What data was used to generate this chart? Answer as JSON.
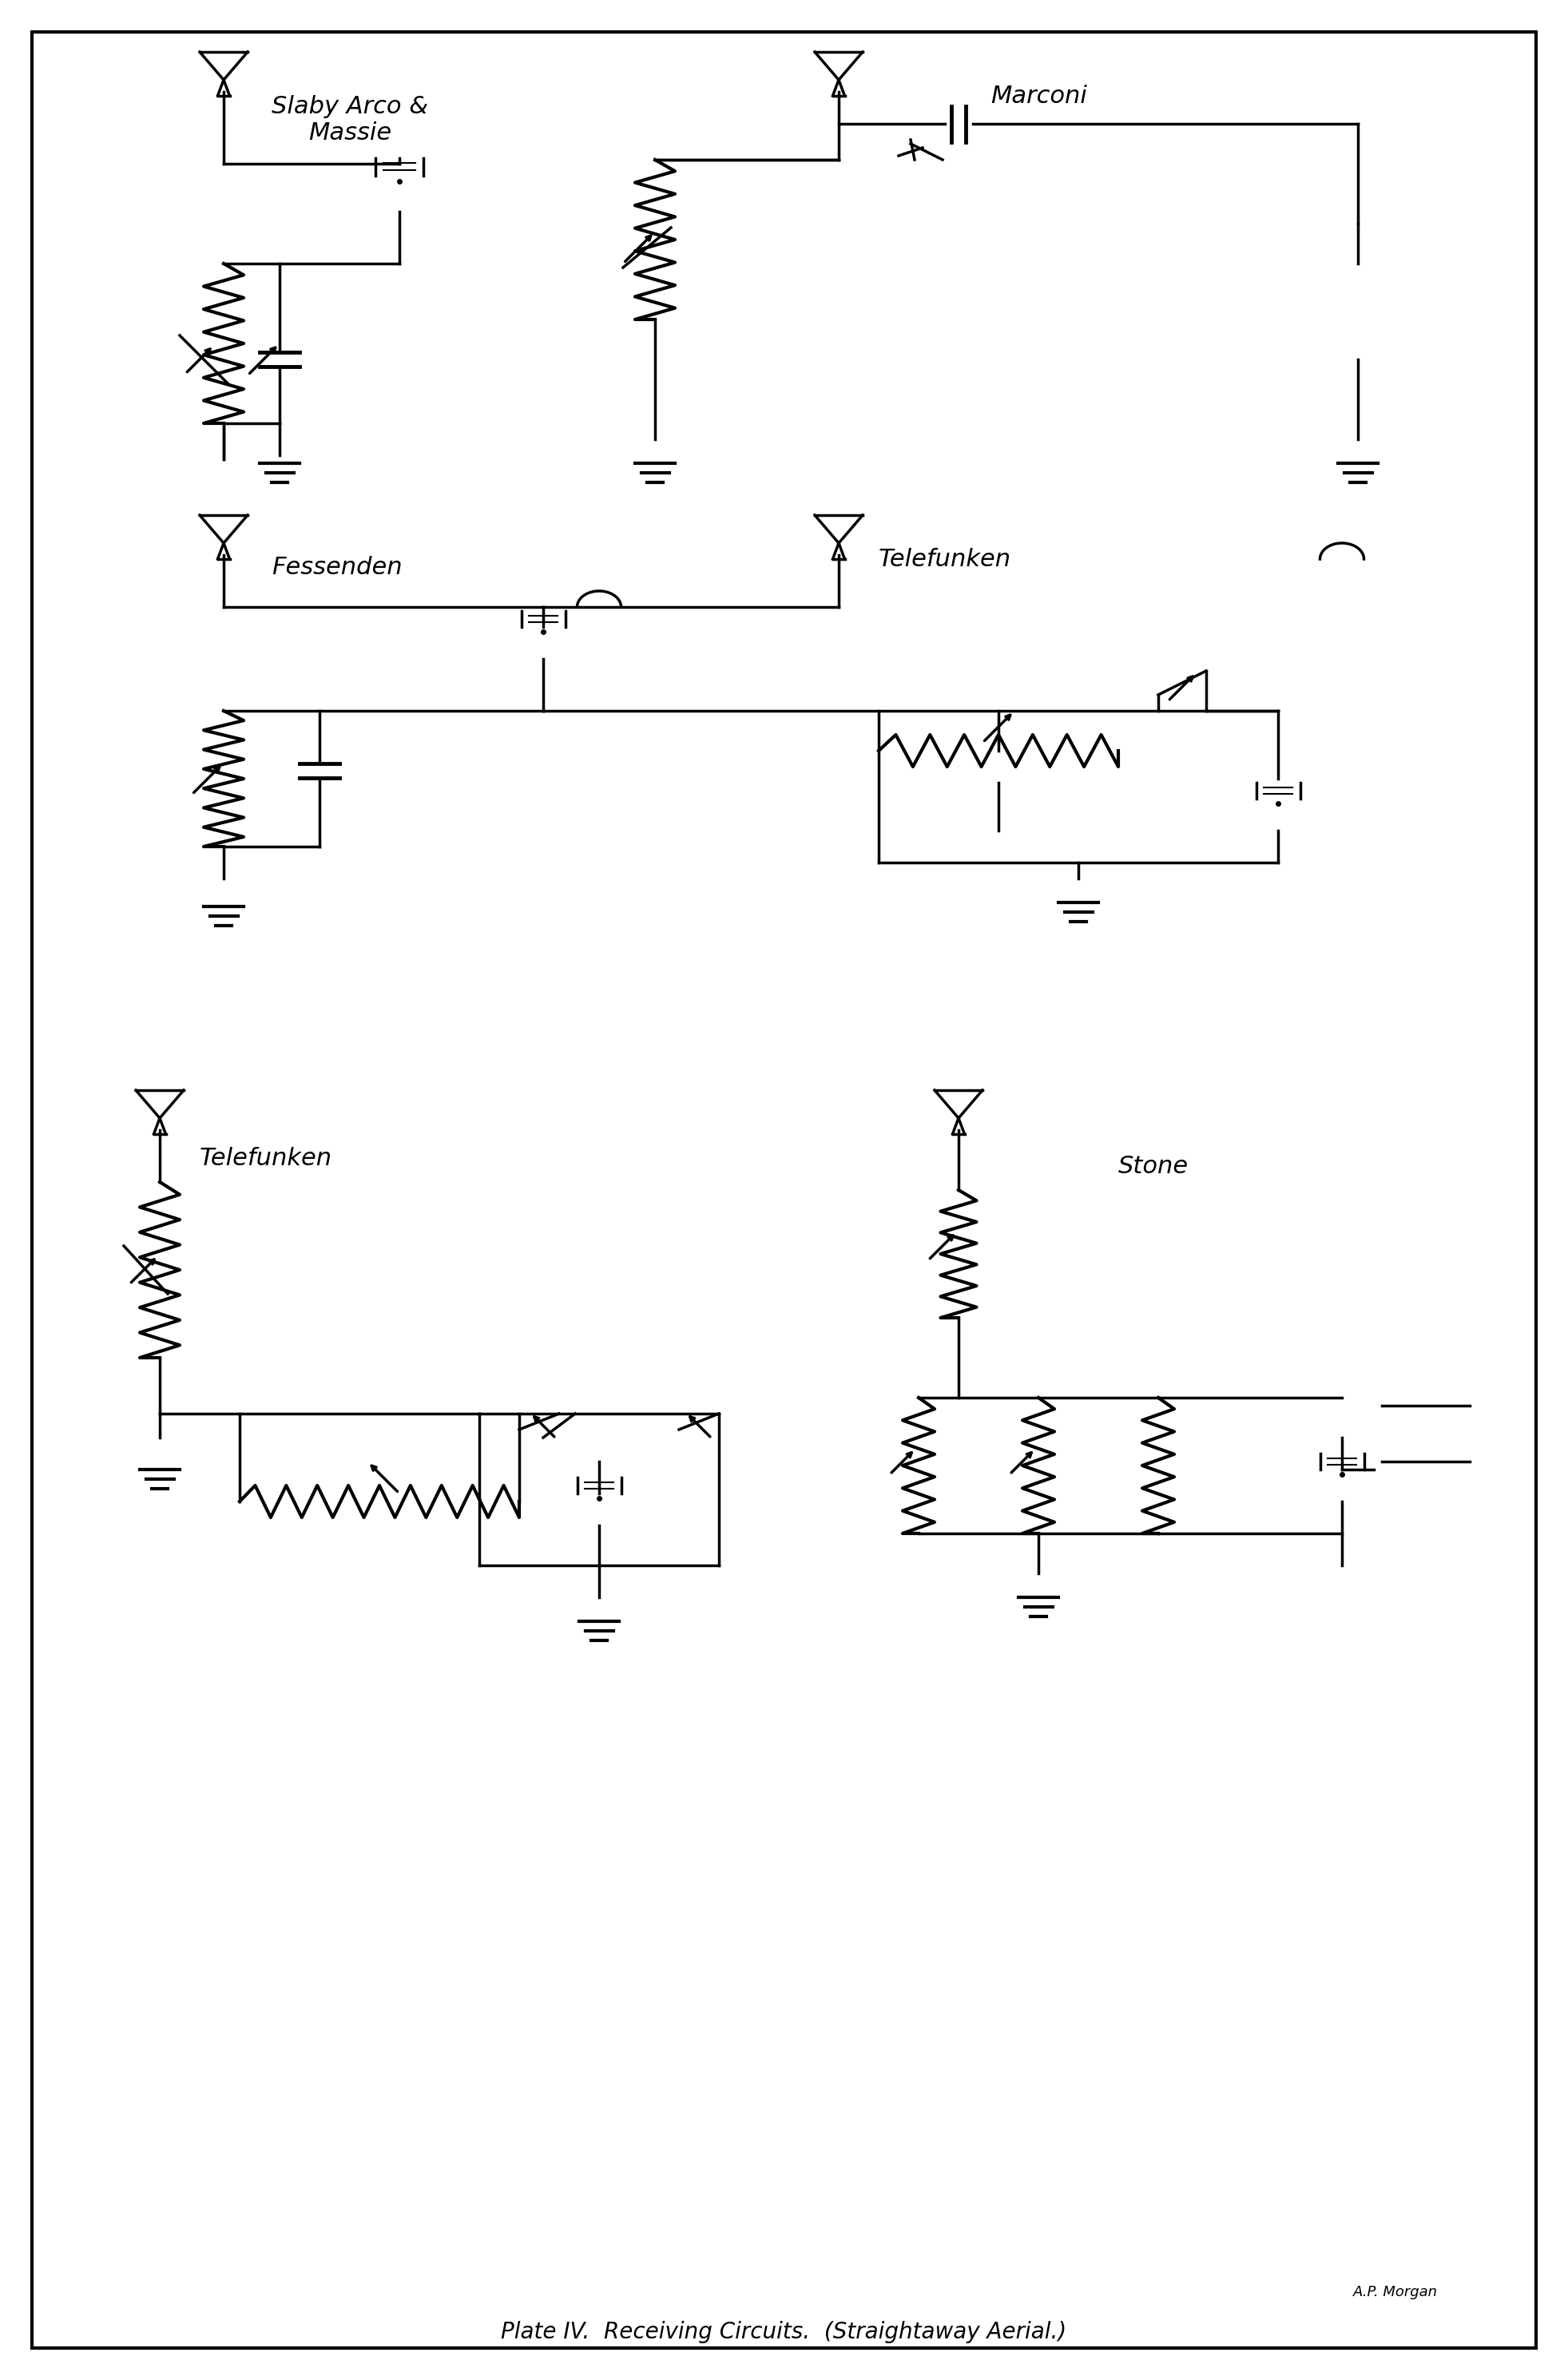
{
  "title": "Plate IV. Receiving Circuits. (Straightaway Aerial.)",
  "background_color": "#ffffff",
  "border_color": "#000000",
  "line_color": "#000000",
  "text_color": "#000000",
  "labels": {
    "slaby": "Slaby Arco &\nMassie",
    "marconi": "Marconi",
    "fessenden": "Fessenden",
    "telefunken1": "Telefunken",
    "telefunken2": "Telefunken",
    "stone": "Stone",
    "author": "A.P. Morgan"
  },
  "fig_width": 19.63,
  "fig_height": 29.8
}
